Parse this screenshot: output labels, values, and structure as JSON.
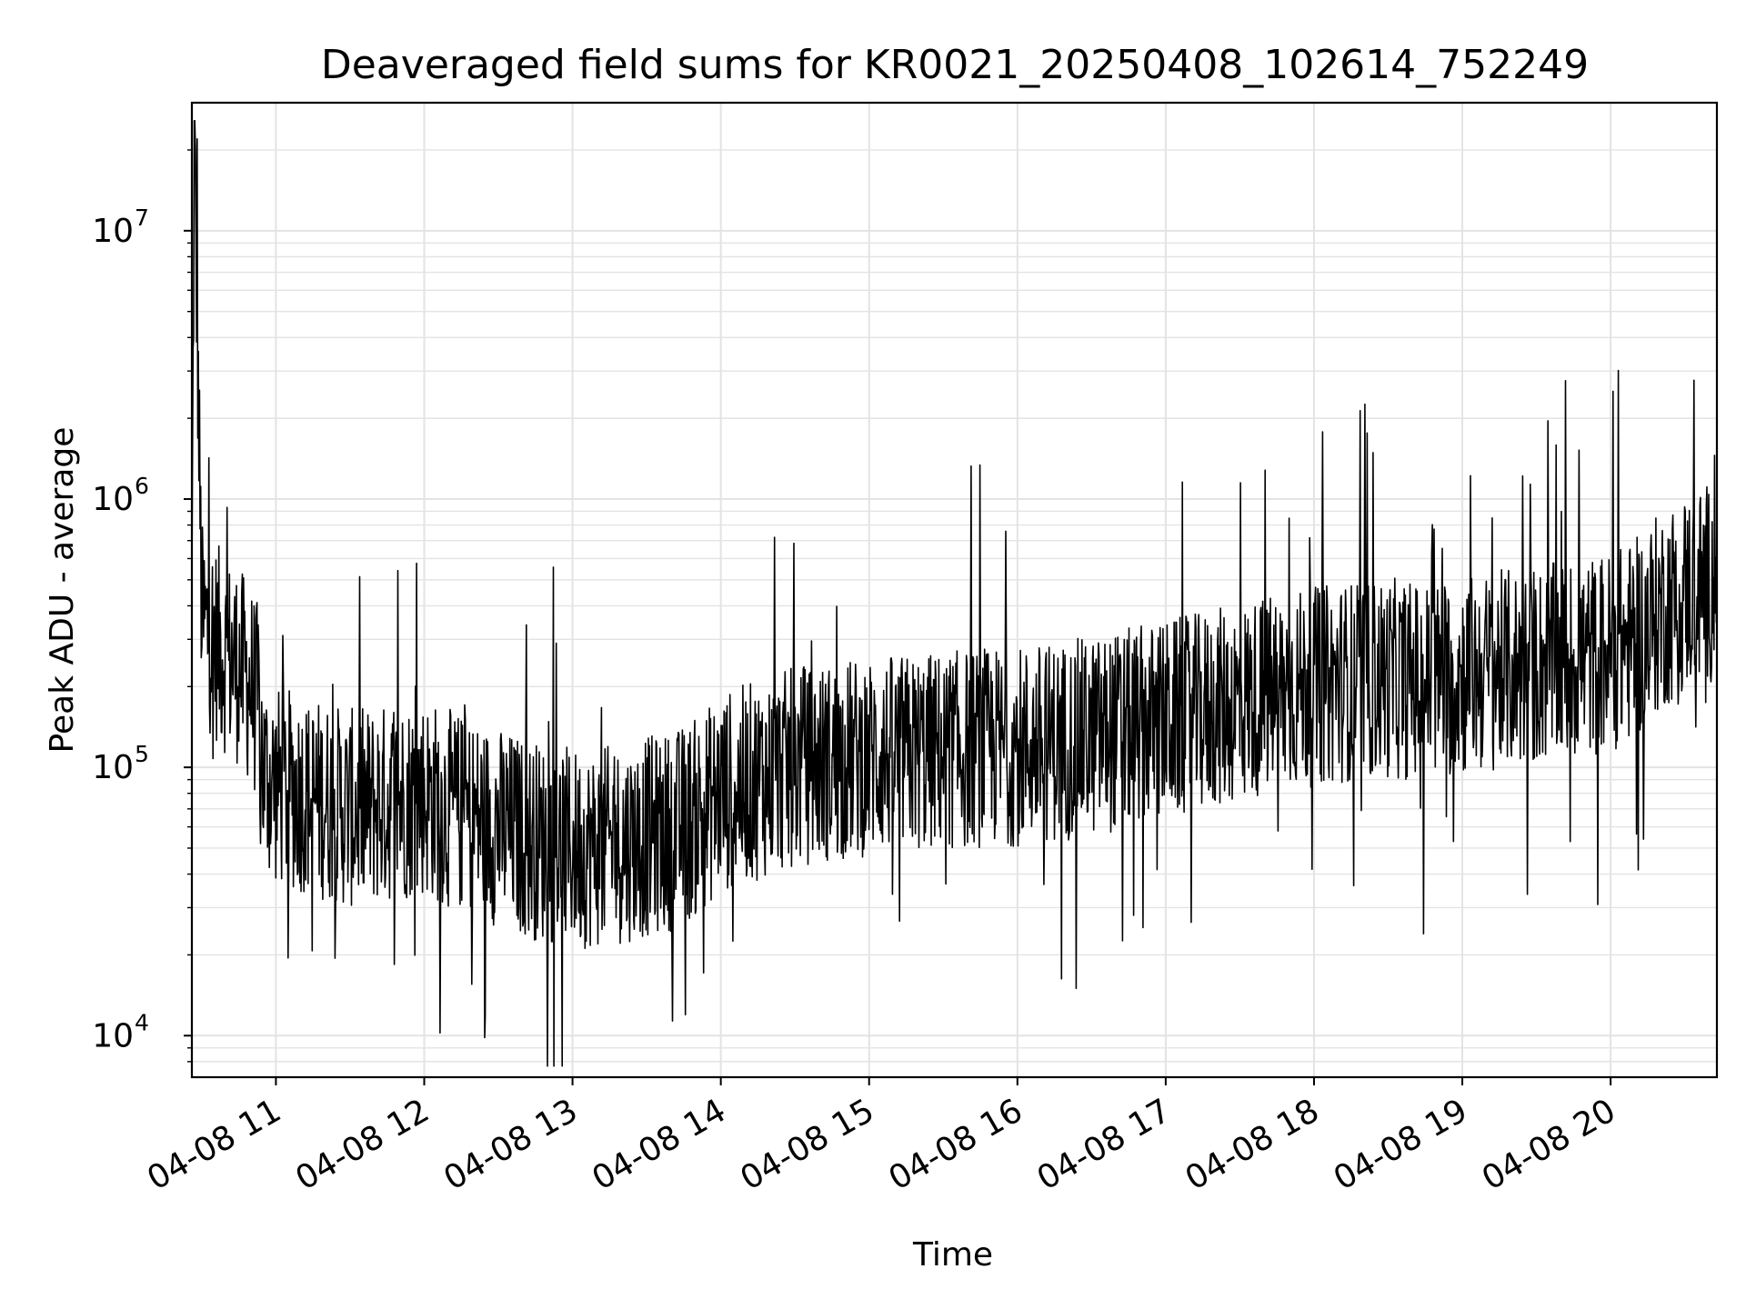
{
  "chart_data": {
    "type": "line",
    "title": "Deaveraged field sums for KR0021_20250408_102614_752249",
    "xlabel": "Time",
    "ylabel": "Peak ADU - average",
    "yscale": "log",
    "ylim": [
      7000,
      30000000
    ],
    "xlim": [
      "2025-04-08 10:26",
      "2025-04-08 20:43"
    ],
    "grid": true,
    "line_color": "#000000",
    "grid_color": "#e3e3e3",
    "xticks": [
      {
        "label": "04-08 11",
        "time": "2025-04-08 11:00"
      },
      {
        "label": "04-08 12",
        "time": "2025-04-08 12:00"
      },
      {
        "label": "04-08 13",
        "time": "2025-04-08 13:00"
      },
      {
        "label": "04-08 14",
        "time": "2025-04-08 14:00"
      },
      {
        "label": "04-08 15",
        "time": "2025-04-08 15:00"
      },
      {
        "label": "04-08 16",
        "time": "2025-04-08 16:00"
      },
      {
        "label": "04-08 17",
        "time": "2025-04-08 17:00"
      },
      {
        "label": "04-08 18",
        "time": "2025-04-08 18:00"
      },
      {
        "label": "04-08 19",
        "time": "2025-04-08 19:00"
      },
      {
        "label": "04-08 20",
        "time": "2025-04-08 20:00"
      }
    ],
    "yticks": [
      {
        "base": "10",
        "exp": "4",
        "value": 10000
      },
      {
        "base": "10",
        "exp": "5",
        "value": 100000
      },
      {
        "base": "10",
        "exp": "6",
        "value": 1000000
      },
      {
        "base": "10",
        "exp": "7",
        "value": 10000000
      }
    ],
    "series": [
      {
        "x": [
          "2025-04-08 10:26",
          "2025-04-08 10:27",
          "2025-04-08 10:30",
          "2025-04-08 10:35",
          "2025-04-08 10:40",
          "2025-04-08 10:45",
          "2025-04-08 10:50",
          "2025-04-08 10:53",
          "2025-04-08 10:55",
          "2025-04-08 11:00",
          "2025-04-08 11:10",
          "2025-04-08 11:20",
          "2025-04-08 11:30",
          "2025-04-08 11:40",
          "2025-04-08 11:50",
          "2025-04-08 12:00",
          "2025-04-08 12:10",
          "2025-04-08 12:20",
          "2025-04-08 12:30",
          "2025-04-08 12:40",
          "2025-04-08 12:50",
          "2025-04-08 13:00",
          "2025-04-08 13:10",
          "2025-04-08 13:20",
          "2025-04-08 13:30",
          "2025-04-08 13:40",
          "2025-04-08 13:50",
          "2025-04-08 14:00",
          "2025-04-08 14:15",
          "2025-04-08 14:30",
          "2025-04-08 14:45",
          "2025-04-08 15:00",
          "2025-04-08 15:15",
          "2025-04-08 15:30",
          "2025-04-08 15:45",
          "2025-04-08 16:00",
          "2025-04-08 16:15",
          "2025-04-08 16:30",
          "2025-04-08 16:45",
          "2025-04-08 17:00",
          "2025-04-08 17:15",
          "2025-04-08 17:30",
          "2025-04-08 17:45",
          "2025-04-08 18:00",
          "2025-04-08 18:15",
          "2025-04-08 18:30",
          "2025-04-08 18:45",
          "2025-04-08 19:00",
          "2025-04-08 19:15",
          "2025-04-08 19:30",
          "2025-04-08 19:45",
          "2025-04-08 20:00",
          "2025-04-08 20:10",
          "2025-04-08 20:20",
          "2025-04-08 20:30",
          "2025-04-08 20:43"
        ],
        "y": [
          400000,
          22000000,
          350000,
          300000,
          260000,
          240000,
          200000,
          170000,
          95000,
          85000,
          80000,
          75000,
          70000,
          72000,
          75000,
          78000,
          70000,
          65000,
          60000,
          55000,
          52000,
          50000,
          50000,
          52000,
          55000,
          58000,
          65000,
          80000,
          90000,
          100000,
          105000,
          110000,
          112000,
          115000,
          118000,
          120000,
          125000,
          130000,
          140000,
          150000,
          160000,
          175000,
          190000,
          200000,
          210000,
          215000,
          210000,
          220000,
          230000,
          240000,
          250000,
          270000,
          300000,
          380000,
          450000,
          500000
        ]
      }
    ]
  }
}
